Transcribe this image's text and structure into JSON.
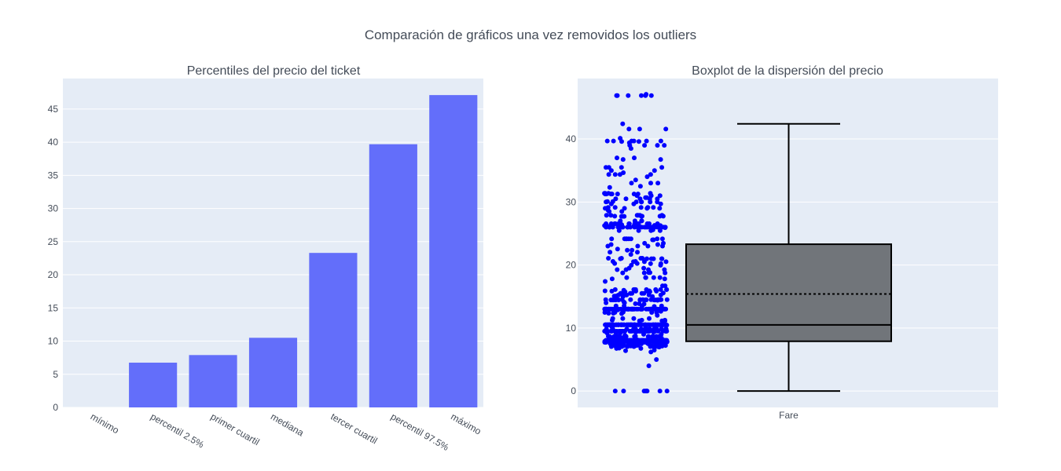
{
  "figure": {
    "title": "Comparación de gráficos una vez removidos los outliers"
  },
  "chart_data": [
    {
      "type": "bar",
      "title": "Percentiles del precio del ticket",
      "xlabel": "",
      "ylabel": "",
      "categories": [
        "mínimo",
        "percentil 2.5%",
        "primer cuartil",
        "mediana",
        "tercer cuartil",
        "percentil 97.5%",
        "máximo"
      ],
      "values": [
        0,
        6.75,
        7.8958,
        10.5,
        23.3,
        39.6875,
        47.1
      ],
      "ylim": [
        0,
        49.6
      ],
      "yticks": [
        0,
        5,
        10,
        15,
        20,
        25,
        30,
        35,
        40,
        45
      ],
      "bar_color": "#636efa",
      "background": "#e5ecf6",
      "grid": true
    },
    {
      "type": "box",
      "title": "Boxplot de la dispersión del precio",
      "xlabel": "",
      "ylabel": "",
      "categories": [
        "Fare"
      ],
      "ylim": [
        -2.6,
        49.6
      ],
      "yticks": [
        0,
        10,
        20,
        30,
        40
      ],
      "box": {
        "min": 0,
        "q1": 7.8958,
        "median": 10.5,
        "mean": 15.4,
        "q3": 23.3,
        "max": 42.4
      },
      "box_fill": "#71757a",
      "line_color": "#000000",
      "point_color": "#0000ff",
      "points_shown": "all",
      "points": [
        0,
        0,
        0,
        0,
        0,
        0,
        0,
        0,
        4,
        5,
        6.2,
        6.4,
        6.5,
        6.75,
        6.75,
        6.8,
        6.95,
        6.95,
        6.975,
        7.05,
        7.05,
        7.05,
        7.05,
        7.0542,
        7.0542,
        7.125,
        7.125,
        7.125,
        7.1417,
        7.225,
        7.225,
        7.225,
        7.225,
        7.225,
        7.225,
        7.225,
        7.225,
        7.2292,
        7.2292,
        7.2292,
        7.2292,
        7.2292,
        7.25,
        7.25,
        7.25,
        7.3125,
        7.4958,
        7.4958,
        7.4958,
        7.5208,
        7.55,
        7.55,
        7.55,
        7.55,
        7.6292,
        7.65,
        7.65,
        7.65,
        7.65,
        7.7292,
        7.7333,
        7.7375,
        7.7375,
        7.7417,
        7.75,
        7.75,
        7.75,
        7.75,
        7.75,
        7.75,
        7.75,
        7.75,
        7.75,
        7.75,
        7.75,
        7.75,
        7.75,
        7.75,
        7.75,
        7.75,
        7.75,
        7.75,
        7.75,
        7.75,
        7.75,
        7.75,
        7.75,
        7.75,
        7.75,
        7.75,
        7.75,
        7.75,
        7.775,
        7.775,
        7.775,
        7.775,
        7.775,
        7.775,
        7.775,
        7.775,
        7.775,
        7.775,
        7.7875,
        7.7958,
        7.7958,
        7.7958,
        7.7958,
        7.7958,
        7.7958,
        7.8,
        7.8292,
        7.8292,
        7.8542,
        7.8542,
        7.8542,
        7.8542,
        7.8542,
        7.8542,
        7.8542,
        7.8542,
        7.8542,
        7.8542,
        7.8542,
        7.8542,
        7.8542,
        7.875,
        7.8792,
        7.8792,
        7.8792,
        7.8792,
        7.8875,
        7.8958,
        7.8958,
        7.8958,
        7.8958,
        7.8958,
        7.8958,
        7.8958,
        7.8958,
        7.8958,
        7.8958,
        7.8958,
        7.8958,
        7.8958,
        7.8958,
        7.8958,
        7.8958,
        7.8958,
        7.8958,
        7.8958,
        7.8958,
        7.8958,
        7.8958,
        7.8958,
        7.8958,
        7.8958,
        7.8958,
        7.8958,
        7.8958,
        7.8958,
        7.8958,
        7.8958,
        7.8958,
        7.8958,
        7.8958,
        7.8958,
        7.8958,
        7.8958,
        7.8958,
        7.8958,
        7.8958,
        7.8958,
        7.8958,
        7.8958,
        7.8958,
        7.8958,
        7.8958,
        7.8958,
        7.8958,
        7.8958,
        7.8958,
        7.8958,
        7.8958,
        7.925,
        7.925,
        7.925,
        7.925,
        7.925,
        7.925,
        7.925,
        7.925,
        7.925,
        7.925,
        7.925,
        7.925,
        7.925,
        7.925,
        7.925,
        7.925,
        7.925,
        7.925,
        8.0292,
        8.05,
        8.05,
        8.05,
        8.05,
        8.05,
        8.05,
        8.05,
        8.05,
        8.05,
        8.05,
        8.05,
        8.05,
        8.05,
        8.05,
        8.05,
        8.05,
        8.05,
        8.05,
        8.05,
        8.05,
        8.05,
        8.05,
        8.05,
        8.05,
        8.05,
        8.05,
        8.05,
        8.05,
        8.05,
        8.05,
        8.05,
        8.05,
        8.05,
        8.05,
        8.05,
        8.05,
        8.05,
        8.05,
        8.05,
        8.05,
        8.05,
        8.05,
        8.1125,
        8.1375,
        8.1583,
        8.3,
        8.3625,
        8.4042,
        8.4333,
        8.4583,
        8.5167,
        8.6542,
        8.6625,
        8.6625,
        8.6625,
        8.6625,
        8.6625,
        8.6625,
        8.6625,
        8.6625,
        8.6625,
        8.6625,
        8.6625,
        8.6625,
        8.6625,
        8.6833,
        8.7125,
        8.85,
        9,
        9,
        9.2167,
        9.225,
        9.225,
        9.35,
        9.35,
        9.475,
        9.4833,
        9.5,
        9.5,
        9.5,
        9.5,
        9.5,
        9.5,
        9.5,
        9.5,
        9.5,
        9.5,
        9.5,
        9.5,
        9.5,
        9.5,
        9.5,
        9.5,
        9.5,
        9.5,
        9.5,
        9.5,
        9.5,
        9.5,
        9.5,
        9.5,
        9.5,
        9.5,
        9.5,
        9.5,
        9.5,
        9.5,
        9.5,
        9.5,
        9.5,
        9.5,
        9.5,
        9.5,
        9.5,
        9.5,
        9.5,
        9.5,
        9.8375,
        9.8417,
        9.8417,
        9.8417,
        9.8417,
        9.8417,
        9.8417,
        9.8417,
        9.8417,
        9.8417,
        9.8417,
        9.8417,
        9.8417,
        9.8417,
        9.8417,
        9.8417,
        9.8417,
        10.1708,
        10.4625,
        10.4625,
        10.4625,
        10.4625,
        10.4625,
        10.4625,
        10.5,
        10.5,
        10.5,
        10.5,
        10.5,
        10.5,
        10.5,
        10.5,
        10.5,
        10.5,
        10.5,
        10.5,
        10.5,
        10.5,
        10.5,
        10.5,
        10.5,
        10.5,
        10.5,
        10.5,
        10.5,
        10.5,
        10.5,
        10.5,
        10.5,
        10.5,
        10.5,
        10.5,
        10.5,
        10.5,
        10.5,
        10.5,
        10.5,
        10.5,
        10.5,
        10.5,
        10.5,
        10.5,
        10.5,
        10.5,
        10.5,
        10.5,
        10.5,
        10.5,
        10.5,
        10.5,
        10.5,
        10.5,
        10.5,
        10.5,
        10.5,
        10.5,
        10.5,
        10.5,
        10.5,
        10.5,
        10.5,
        10.5,
        10.5,
        10.5,
        10.5,
        10.5,
        10.5,
        10.5,
        10.5,
        10.5,
        10.5,
        10.5,
        10.5,
        10.5,
        10.5,
        10.5,
        10.5,
        10.5,
        10.5,
        10.5,
        10.5,
        10.5,
        10.5,
        10.5,
        10.5,
        10.5,
        10.5,
        10.5,
        10.5,
        10.5,
        10.5,
        10.5,
        10.5,
        10.5,
        10.5,
        10.5,
        10.5,
        10.5,
        11.1333,
        11.1333,
        11.1333,
        11.2417,
        11.2417,
        11.2417,
        11.5,
        11.5,
        11.5,
        11.5,
        12,
        12.2875,
        12.35,
        12.35,
        12.475,
        12.475,
        12.475,
        12.475,
        12.525,
        12.65,
        12.875,
        13,
        13,
        13,
        13,
        13,
        13,
        13,
        13,
        13,
        13,
        13,
        13,
        13,
        13,
        13,
        13,
        13,
        13,
        13,
        13,
        13,
        13,
        13,
        13,
        13,
        13,
        13,
        13,
        13,
        13,
        13,
        13,
        13,
        13,
        13,
        13,
        13,
        13,
        13,
        13,
        13,
        13,
        13,
        13,
        13,
        13,
        13,
        13,
        13,
        13,
        13,
        13,
        13,
        13,
        13,
        13,
        13,
        13,
        13,
        13.4167,
        13.5,
        13.5,
        13.5,
        13.5,
        13.7917,
        13.8583,
        13.8625,
        14,
        14,
        14.1083,
        14.4,
        14.4542,
        14.4542,
        14.4542,
        14.4542,
        14.4542,
        14.4542,
        14.4542,
        14.4583,
        14.4583,
        14.4583,
        14.4583,
        14.4583,
        14.4583,
        14.5,
        14.5,
        14.5,
        14.5,
        14.5,
        14.5,
        14.5,
        14.5,
        14.5,
        14.5,
        14.5,
        14.5,
        14.5,
        14.5,
        15,
        15,
        15.0458,
        15.05,
        15.1,
        15.2458,
        15.2458,
        15.2458,
        15.2458,
        15.2458,
        15.5,
        15.5,
        15.5,
        15.5,
        15.5,
        15.5,
        15.5,
        15.5,
        15.55,
        15.7417,
        15.75,
        15.85,
        15.85,
        15.85,
        15.85,
        15.9,
        15.9,
        16,
        16.1,
        16.1,
        16.1,
        16.1,
        16.1,
        16.1,
        16.1,
        16.1,
        16.1,
        16.7,
        16.7,
        17.4,
        17.8,
        17.8,
        18,
        18,
        18,
        18,
        18,
        18.75,
        18.75,
        18.75,
        18.7875,
        18.7875,
        19.2583,
        19.2583,
        19.2583,
        19.2583,
        19.5,
        19.5,
        19.9667,
        19.9667,
        20.2125,
        20.2125,
        20.25,
        20.25,
        20.525,
        20.525,
        20.525,
        20.575,
        20.575,
        21,
        21,
        21,
        21,
        21,
        21,
        21.075,
        21.075,
        21.075,
        21.075,
        21.6792,
        22.025,
        22.025,
        22.3583,
        22.3583,
        22.525,
        23,
        23,
        23,
        23,
        23.25,
        23.25,
        23.45,
        23.45,
        24,
        24,
        24.15,
        24.15,
        24.15,
        24.15,
        24.15,
        24.15,
        24.15,
        24.15,
        25.4667,
        25.4667,
        25.4667,
        25.4667,
        25.5875,
        25.925,
        25.9292,
        25.9292,
        26,
        26,
        26,
        26,
        26,
        26,
        26,
        26,
        26,
        26,
        26,
        26,
        26,
        26,
        26,
        26,
        26,
        26,
        26,
        26,
        26,
        26,
        26,
        26,
        26,
        26,
        26,
        26,
        26,
        26,
        26,
        26.25,
        26.25,
        26.25,
        26.25,
        26.25,
        26.25,
        26.2833,
        26.2875,
        26.2875,
        26.2875,
        26.3875,
        26.55,
        26.55,
        26.55,
        26.55,
        26.55,
        26.55,
        26.55,
        26.55,
        26.55,
        26.55,
        26.55,
        26.55,
        26.55,
        26.55,
        26.55,
        27,
        27,
        27,
        27,
        27.7208,
        27.7208,
        27.7208,
        27.7208,
        27.75,
        27.75,
        27.75,
        27.75,
        27.9,
        27.9,
        27.9,
        27.9,
        27.9,
        27.9,
        28.5,
        28.5,
        28.7125,
        29,
        29,
        29,
        29,
        29.125,
        29.125,
        29.125,
        29.125,
        29.125,
        29.7,
        29.7,
        29.7,
        30,
        30,
        30,
        30,
        30,
        30,
        30.0708,
        30.0708,
        30.5,
        30.5,
        30.5,
        30.5,
        30.5,
        30.6958,
        30.6958,
        31,
        31,
        31,
        31.275,
        31.275,
        31.275,
        31.275,
        31.275,
        31.275,
        31.275,
        31.3875,
        31.3875,
        31.3875,
        31.3875,
        32.3208,
        32.5,
        33,
        33,
        33,
        33.5,
        34.0208,
        34.375,
        34.375,
        34.375,
        34.375,
        34.6542,
        35,
        35,
        35.5,
        35.5,
        35.5,
        35.5,
        36.75,
        36.75,
        37.0042,
        37.0042,
        38.5,
        39,
        39,
        39,
        39,
        39.4,
        39.6,
        39.6,
        39.6875,
        39.6875,
        39.6875,
        39.6875,
        39.6875,
        39.6875,
        40.125,
        41.5792,
        41.5792,
        41.5792,
        42.4,
        46.9,
        46.9,
        46.9,
        46.9,
        46.9,
        46.9,
        47.1
      ]
    }
  ]
}
